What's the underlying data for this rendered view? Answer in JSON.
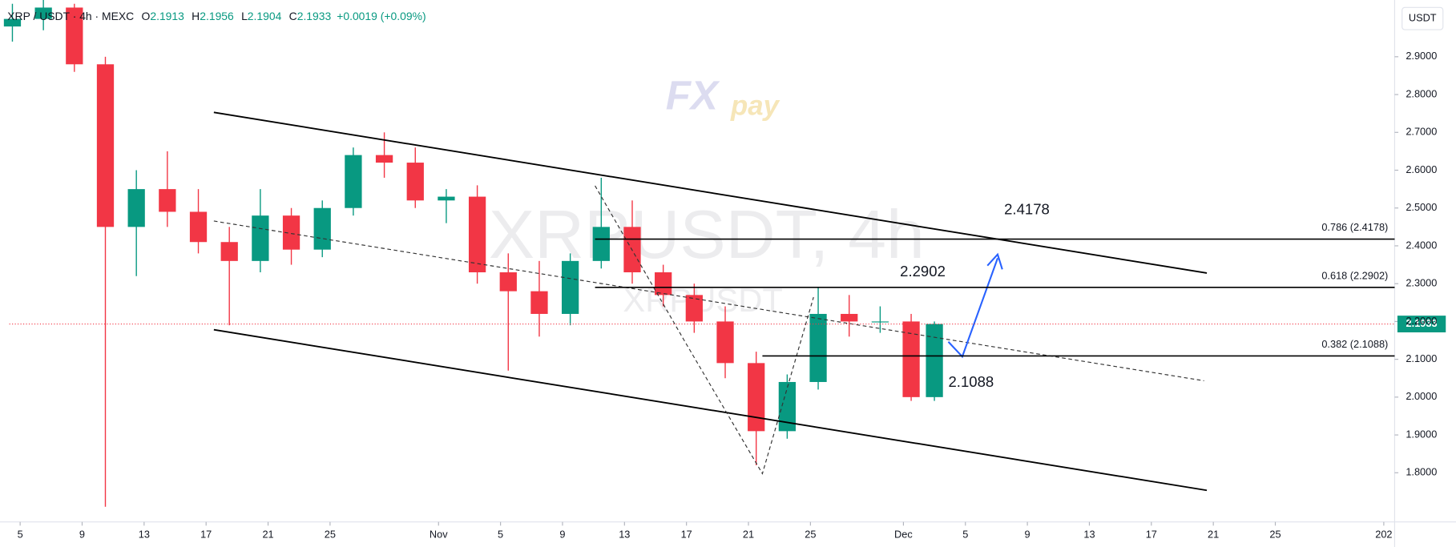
{
  "chart_data": {
    "type": "candlestick",
    "header": {
      "symbol": "XRP / USDT · 4h · MEXC",
      "ohlc": [
        {
          "key": "O",
          "value": "2.1913"
        },
        {
          "key": "H",
          "value": "2.1956"
        },
        {
          "key": "L",
          "value": "2.1904"
        },
        {
          "key": "C",
          "value": "2.1933"
        }
      ],
      "change": "+0.0019 (+0.09%)"
    },
    "currency_button": "USDT",
    "watermark": "XRPUSDT, 4h",
    "watermark_sub": "XRPUSDT",
    "logo": {
      "main": "FX",
      "sub": "pay"
    },
    "up_color": "#089981",
    "down_color": "#f23645",
    "x": [
      4.5,
      6.5,
      8.5,
      10.5,
      12.5,
      14.5,
      16.5,
      18.5,
      20.5,
      22.5,
      24.5,
      26.5,
      28.5,
      30.5,
      32.5,
      34.5,
      36.5,
      38.5,
      40.5,
      42.5,
      44.5,
      46.5,
      48.5,
      50.5,
      52.5,
      54.5,
      56.5,
      58.5,
      60.5,
      62.5,
      64
    ],
    "open": [
      2.98,
      3.0,
      3.03,
      2.88,
      2.45,
      2.55,
      2.49,
      2.41,
      2.36,
      2.48,
      2.39,
      2.5,
      2.64,
      2.62,
      2.52,
      2.53,
      2.33,
      2.28,
      2.22,
      2.36,
      2.45,
      2.33,
      2.27,
      2.2,
      2.09,
      1.91,
      2.04,
      2.22,
      2.2,
      2.2,
      2.0
    ],
    "high": [
      3.04,
      3.05,
      3.04,
      2.9,
      2.6,
      2.65,
      2.55,
      2.45,
      2.55,
      2.5,
      2.52,
      2.66,
      2.7,
      2.66,
      2.55,
      2.56,
      2.38,
      2.36,
      2.38,
      2.58,
      2.52,
      2.35,
      2.3,
      2.24,
      2.12,
      2.06,
      2.29,
      2.27,
      2.24,
      2.22,
      2.2
    ],
    "low": [
      2.94,
      2.97,
      2.86,
      1.71,
      2.32,
      2.45,
      2.38,
      2.19,
      2.33,
      2.35,
      2.37,
      2.48,
      2.58,
      2.5,
      2.46,
      2.3,
      2.07,
      2.16,
      2.19,
      2.34,
      2.3,
      2.24,
      2.17,
      2.05,
      1.82,
      1.89,
      2.02,
      2.16,
      2.17,
      1.99,
      1.99
    ],
    "close": [
      3.0,
      3.03,
      2.88,
      2.45,
      2.55,
      2.49,
      2.41,
      2.36,
      2.48,
      2.39,
      2.5,
      2.64,
      2.62,
      2.52,
      2.53,
      2.33,
      2.28,
      2.22,
      2.36,
      2.45,
      2.33,
      2.27,
      2.2,
      2.09,
      1.91,
      2.04,
      2.22,
      2.2,
      2.2,
      2.0,
      2.1933
    ],
    "last_price": 2.1933,
    "fib_levels": [
      {
        "value": 2.4178,
        "label": "0.786 (2.4178)"
      },
      {
        "value": 2.2902,
        "label": "0.618 (2.2902)"
      },
      {
        "value": 2.1088,
        "label": "0.382 (2.1088)"
      }
    ],
    "xlim": [
      4.3,
      93.7
    ],
    "xticks": [
      {
        "value": 5,
        "label": "5"
      },
      {
        "value": 9,
        "label": "9"
      },
      {
        "value": 13,
        "label": "13"
      },
      {
        "value": 17,
        "label": "17"
      },
      {
        "value": 21,
        "label": "21"
      },
      {
        "value": 25,
        "label": "25"
      },
      {
        "value": 32,
        "label": "Nov"
      },
      {
        "value": 36,
        "label": "5"
      },
      {
        "value": 40,
        "label": "9"
      },
      {
        "value": 44,
        "label": "13"
      },
      {
        "value": 48,
        "label": "17"
      },
      {
        "value": 52,
        "label": "21"
      },
      {
        "value": 56,
        "label": "25"
      },
      {
        "value": 62,
        "label": "Dec"
      },
      {
        "value": 66,
        "label": "5"
      },
      {
        "value": 70,
        "label": "9"
      },
      {
        "value": 74,
        "label": "13"
      },
      {
        "value": 78,
        "label": "17"
      },
      {
        "value": 82,
        "label": "21"
      },
      {
        "value": 86,
        "label": "25"
      },
      {
        "value": 93,
        "label": "202"
      }
    ],
    "ylim": [
      1.67,
      3.05
    ],
    "yticks": [
      {
        "value": 1.8,
        "label": "1.8000"
      },
      {
        "value": 1.9,
        "label": "1.9000"
      },
      {
        "value": 2.0,
        "label": "2.0000"
      },
      {
        "value": 2.1,
        "label": "2.1000"
      },
      {
        "value": 2.2,
        "label": "2.2000"
      },
      {
        "value": 2.3,
        "label": "2.3000"
      },
      {
        "value": 2.4,
        "label": "2.4000"
      },
      {
        "value": 2.5,
        "label": "2.5000"
      },
      {
        "value": 2.6,
        "label": "2.6000"
      },
      {
        "value": 2.7,
        "label": "2.7000"
      },
      {
        "value": 2.8,
        "label": "2.8000"
      },
      {
        "value": 2.9,
        "label": "2.9000"
      }
    ]
  }
}
